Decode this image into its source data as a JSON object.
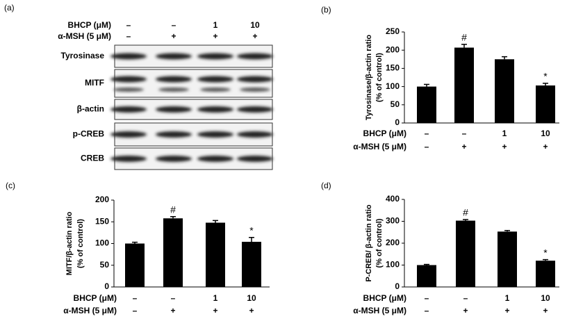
{
  "blot": {
    "panel": "(a)",
    "treatments": [
      {
        "label": "BHCP (μM)",
        "values": [
          "–",
          "–",
          "1",
          "10"
        ]
      },
      {
        "label": "α-MSH (5 μM)",
        "values": [
          "–",
          "+",
          "+",
          "+"
        ]
      }
    ],
    "bands": [
      "Tyrosinase",
      "MITF",
      "β-actin",
      "p-CREB",
      "CREB"
    ]
  },
  "chart_data": [
    {
      "type": "bar",
      "panel": "(b)",
      "ylabel": [
        "Tyrosinase/β-actin ratio",
        "(% of control)"
      ],
      "treatments": [
        {
          "label": "BHCP (μM)",
          "values": [
            "–",
            "–",
            "1",
            "10"
          ]
        },
        {
          "label": "α-MSH (5 μM)",
          "values": [
            "–",
            "+",
            "+",
            "+"
          ]
        }
      ],
      "values": [
        100,
        207,
        175,
        103
      ],
      "errors": [
        6,
        9,
        7,
        6
      ],
      "annotations": [
        null,
        "#",
        null,
        "*"
      ],
      "color": "#000000",
      "ylim": [
        0,
        250
      ],
      "yticks": [
        0,
        50,
        100,
        150,
        200,
        250
      ]
    },
    {
      "type": "bar",
      "panel": "(c)",
      "ylabel": [
        "MITF/β-actin ratio",
        "(% of control)"
      ],
      "treatments": [
        {
          "label": "BHCP (μM)",
          "values": [
            "–",
            "–",
            "1",
            "10"
          ]
        },
        {
          "label": "α-MSH (5 μM)",
          "values": [
            "–",
            "+",
            "+",
            "+"
          ]
        }
      ],
      "values": [
        100,
        158,
        148,
        104
      ],
      "errors": [
        3,
        4,
        5,
        10
      ],
      "annotations": [
        null,
        "#",
        null,
        "*"
      ],
      "color": "#000000",
      "ylim": [
        0,
        200
      ],
      "yticks": [
        0,
        50,
        100,
        150,
        200
      ]
    },
    {
      "type": "bar",
      "panel": "(d)",
      "ylabel": [
        "P-CREB/ β-actin ratio",
        "(% of control)"
      ],
      "treatments": [
        {
          "label": "BHCP (μM)",
          "values": [
            "–",
            "–",
            "1",
            "10"
          ]
        },
        {
          "label": "α-MSH (5 μM)",
          "values": [
            "–",
            "+",
            "+",
            "+"
          ]
        }
      ],
      "values": [
        100,
        303,
        253,
        120
      ],
      "errors": [
        3,
        5,
        5,
        5
      ],
      "annotations": [
        null,
        "#",
        null,
        "*"
      ],
      "color": "#000000",
      "ylim": [
        0,
        400
      ],
      "yticks": [
        0,
        100,
        200,
        300,
        400
      ]
    }
  ]
}
